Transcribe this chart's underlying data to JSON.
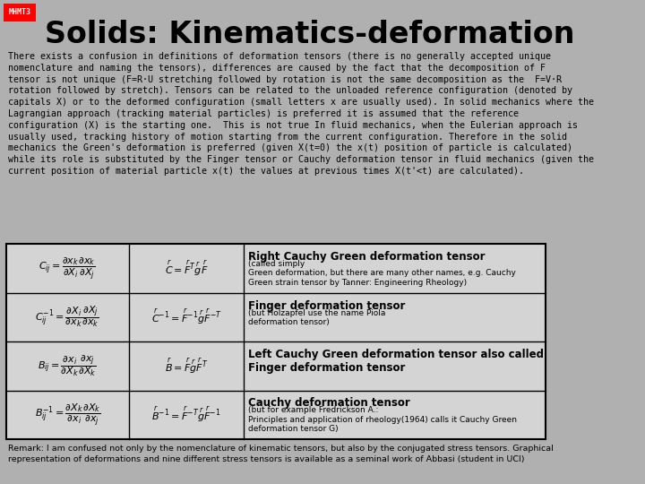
{
  "bg_color": "#b0b0b0",
  "header_bg": "#b0b0b0",
  "title_label_bg": "#ff0000",
  "title_label_text": "MHMT3",
  "title_text": "Solids: Kinematics-deformation",
  "body_text": "There exists a confusion in definitions of deformation tensors (there is no generally accepted unique\nnomenclature and naming the tensors), differences are caused by the fact that the decomposition of F\ntensor is not unique (F=R·U stretching followed by rotation is not the same decomposition as the  F=V·R\nrotation followed by stretch). Tensors can be related to the unloaded reference configuration (denoted by\ncapitals X) or to the deformed configuration (small letters x are usually used). In solid mechanics where the\nLagrangian approach (tracking material particles) is preferred it is assumed that the reference\nconfiguration (X) is the starting one.  This is not true In fluid mechanics, when the Eulerian approach is\nusually used, tracking history of motion starting from the current configuration. Therefore in the solid\nmechanics the Green's deformation is preferred (given X(t=0) the x(t) position of particle is calculated)\nwhile its role is substituted by the Finger tensor or Cauchy deformation tensor in fluid mechanics (given the\ncurrent position of material particle x(t) the values at previous times X(t'<t) are calculated).",
  "table_rows": [
    {
      "formula_left": "$C_{ij} = \\dfrac{\\partial x_k}{\\partial X_i}\\dfrac{\\partial x_k}{\\partial X_j}$",
      "formula_right": "$\\overset{r}{C} = \\overset{r}{F}^T\\overset{r}{g}\\overset{r}{F}$",
      "description_bold": "Right Cauchy Green deformation tensor",
      "description_small": " (called simply\nGreen deformation, but there are many other names, e.g. Cauchy\nGreen strain tensor by Tanner: Engineering Rheology)"
    },
    {
      "formula_left": "$C_{ij}^{-1} = \\dfrac{\\partial X_i}{\\partial x_k}\\dfrac{\\partial X_j}{\\partial x_k}$",
      "formula_right": "$\\overset{r}{C}^{-1} = \\overset{r}{F}^{-1}\\overset{r}{g}\\overset{r}{F}^{-T}$",
      "description_bold": "Finger deformation tensor",
      "description_small": " (but Holzapfel use the name Piola\ndeformation tensor)"
    },
    {
      "formula_left": "$B_{ij} = \\dfrac{\\partial x_i}{\\partial X_k}\\dfrac{\\partial x_j}{\\partial X_k}$",
      "formula_right": "$\\overset{r}{B} = \\overset{r}{F}\\overset{r}{g}\\overset{r}{F}^T$",
      "description_bold": "Left Cauchy Green deformation tensor also called\nFinger deformation tensor",
      "description_small": ""
    },
    {
      "formula_left": "$B_{ij}^{-1} = \\dfrac{\\partial X_k}{\\partial x_i}\\dfrac{\\partial X_k}{\\partial x_j}$",
      "formula_right": "$\\overset{r}{B}^{-1} = \\overset{r}{F}^{-T}\\overset{r}{g}\\overset{r}{F}^{-1}$",
      "description_bold": "Cauchy deformation tensor",
      "description_small": " (but for example Fredrickson A.:\nPrinciples and application of rheology(1964) calls it Cauchy Green\ndeformation tensor G)"
    }
  ],
  "remark_text": "Remark: I am confused not only by the nomenclature of kinematic tensors, but also by the conjugated stress tensors. Graphical\nrepresentation of deformations and nine different stress tensors is available as a seminal work of Abbasi (student in UCI)",
  "table_bg": "#c8c8c8",
  "table_border": "#000000",
  "cell_bg": "#d4d4d4"
}
